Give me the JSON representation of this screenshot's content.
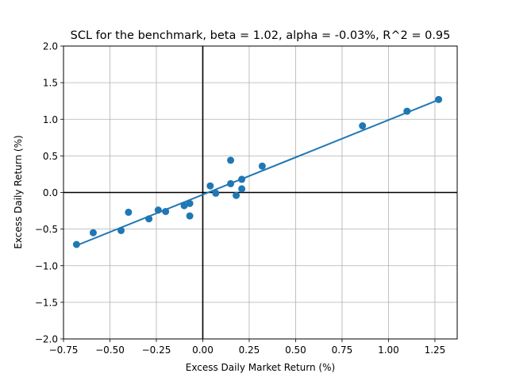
{
  "chart_data": {
    "type": "scatter",
    "title": "SCL for the benchmark, beta = 1.02, alpha = -0.03%, R^2 = 0.95",
    "xlabel": "Excess Daily Market Return (%)",
    "ylabel": "Excess Daily Return (%)",
    "xlim": [
      -0.75,
      1.37
    ],
    "ylim": [
      -2.0,
      2.0
    ],
    "xticks": [
      -0.75,
      -0.5,
      -0.25,
      0.0,
      0.25,
      0.5,
      0.75,
      1.0,
      1.25
    ],
    "xtick_labels": [
      "−0.75",
      "−0.50",
      "−0.25",
      "0.00",
      "0.25",
      "0.50",
      "0.75",
      "1.00",
      "1.25"
    ],
    "yticks": [
      -2.0,
      -1.5,
      -1.0,
      -0.5,
      0.0,
      0.5,
      1.0,
      1.5,
      2.0
    ],
    "ytick_labels": [
      "−2.0",
      "−1.5",
      "−1.0",
      "−0.5",
      "0.0",
      "0.5",
      "1.0",
      "1.5",
      "2.0"
    ],
    "grid": true,
    "series": [
      {
        "type": "scatter",
        "color": "#1f77b4",
        "points": [
          {
            "x": -0.68,
            "y": -0.71
          },
          {
            "x": -0.59,
            "y": -0.55
          },
          {
            "x": -0.44,
            "y": -0.52
          },
          {
            "x": -0.4,
            "y": -0.27
          },
          {
            "x": -0.29,
            "y": -0.36
          },
          {
            "x": -0.24,
            "y": -0.24
          },
          {
            "x": -0.2,
            "y": -0.26
          },
          {
            "x": -0.1,
            "y": -0.18
          },
          {
            "x": -0.07,
            "y": -0.15
          },
          {
            "x": -0.07,
            "y": -0.32
          },
          {
            "x": 0.04,
            "y": 0.09
          },
          {
            "x": 0.07,
            "y": -0.01
          },
          {
            "x": 0.15,
            "y": 0.44
          },
          {
            "x": 0.15,
            "y": 0.12
          },
          {
            "x": 0.18,
            "y": -0.04
          },
          {
            "x": 0.21,
            "y": 0.18
          },
          {
            "x": 0.21,
            "y": 0.05
          },
          {
            "x": 0.32,
            "y": 0.36
          },
          {
            "x": 0.86,
            "y": 0.91
          },
          {
            "x": 1.1,
            "y": 1.11
          },
          {
            "x": 1.27,
            "y": 1.27
          }
        ]
      },
      {
        "type": "line",
        "color": "#1f77b4",
        "x_range": [
          -0.68,
          1.27
        ],
        "slope": 1.02,
        "intercept": -0.03
      }
    ],
    "reference_lines": {
      "x_zero": 0.0,
      "y_zero": 0.0,
      "color": "#000000"
    }
  }
}
